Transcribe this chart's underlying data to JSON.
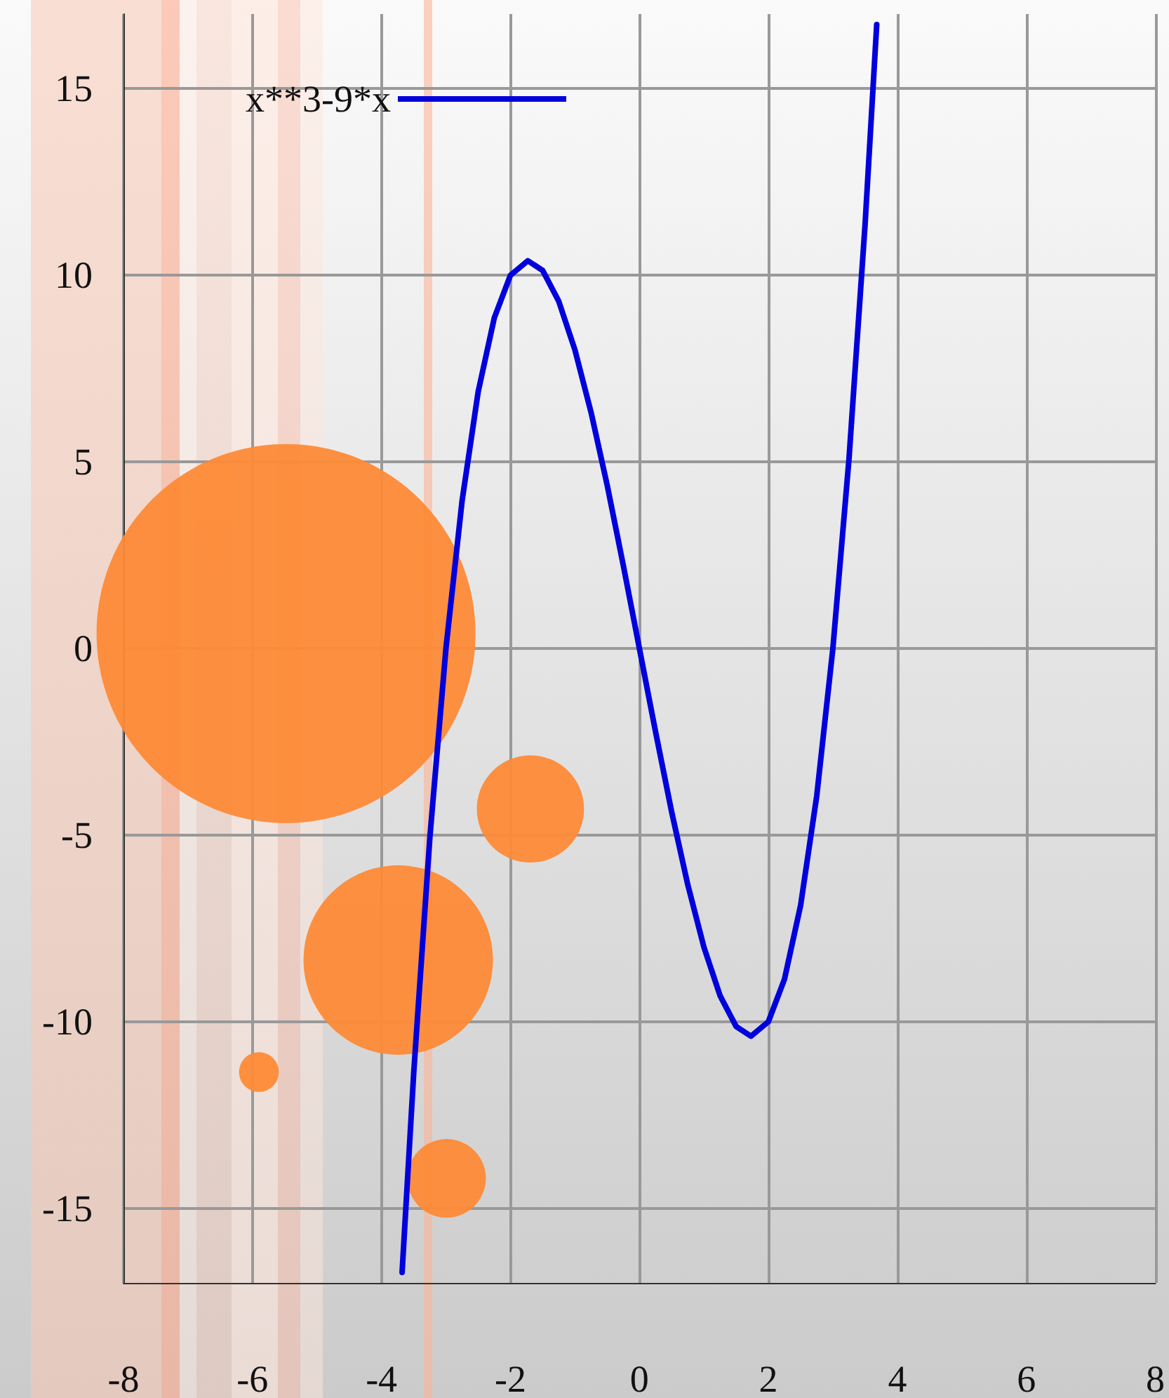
{
  "chart_data": {
    "type": "line",
    "xlim": [
      -8,
      8
    ],
    "ylim": [
      -17,
      17
    ],
    "xticks": [
      -8,
      -6,
      -4,
      -2,
      0,
      2,
      4,
      6,
      8
    ],
    "yticks": [
      -15,
      -10,
      -5,
      0,
      5,
      10,
      15
    ],
    "grid": true,
    "legend": "top",
    "series": [
      {
        "name": "x**3-9*x",
        "color": "#0000dd",
        "x": [
          -3.68,
          -3.5,
          -3.25,
          -3,
          -2.75,
          -2.5,
          -2.25,
          -2,
          -1.73,
          -1.5,
          -1.25,
          -1,
          -0.75,
          -0.5,
          -0.25,
          0,
          0.25,
          0.5,
          0.75,
          1,
          1.25,
          1.5,
          1.73,
          2,
          2.25,
          2.5,
          2.75,
          3,
          3.25,
          3.5,
          3.68
        ],
        "values": [
          -16.72,
          -11.38,
          -5.08,
          0,
          3.95,
          6.88,
          8.86,
          10,
          10.39,
          10.13,
          9.3,
          8,
          6.33,
          4.38,
          2.23,
          0,
          -2.23,
          -4.38,
          -6.33,
          -8,
          -9.3,
          -10.13,
          -10.39,
          -10,
          -8.86,
          -6.88,
          -3.95,
          0,
          5.08,
          11.38,
          16.72
        ]
      },
      {
        "type": "bubble",
        "color": "#fd8a37",
        "x": [
          -5.48,
          -1.69,
          -3.74,
          -5.9,
          -2.99
        ],
        "values": [
          0.4,
          -4.3,
          -8.35,
          -11.35,
          -14.2
        ],
        "sizes": [
          1,
          0.08,
          0.25,
          0.011,
          0.043
        ]
      }
    ]
  }
}
